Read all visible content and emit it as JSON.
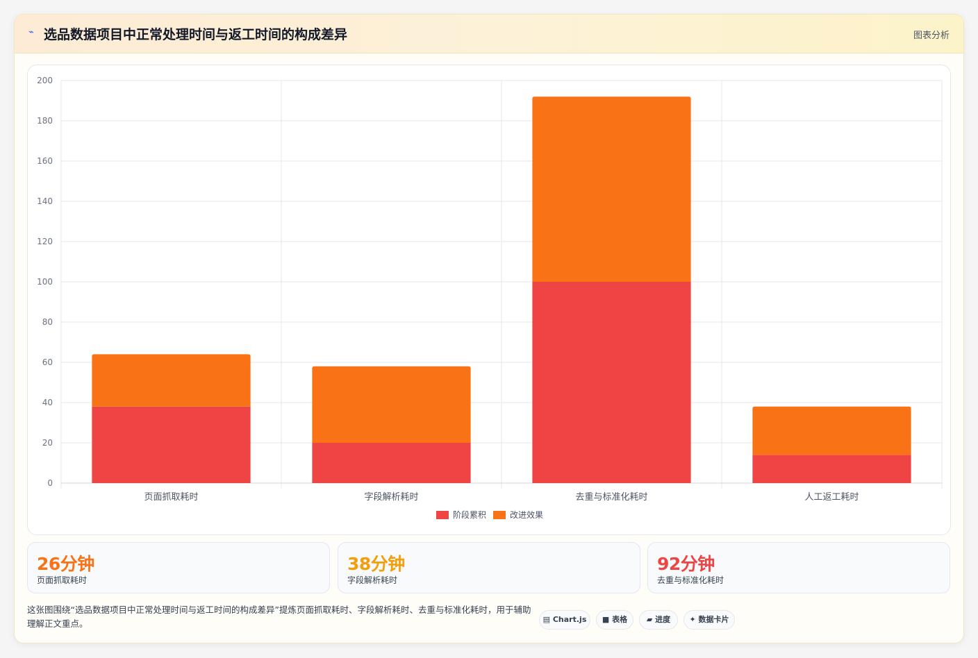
{
  "header": {
    "icon": "chart-icon",
    "title": "选品数据项目中正常处理时间与返工时间的构成差异",
    "tag": "图表分析"
  },
  "chart_data": {
    "type": "bar",
    "stacked": true,
    "categories": [
      "页面抓取耗时",
      "字段解析耗时",
      "去重与标准化耗时",
      "人工返工耗时"
    ],
    "series": [
      {
        "name": "阶段累积",
        "color": "#ef4444",
        "values": [
          38,
          20,
          100,
          14
        ]
      },
      {
        "name": "改进效果",
        "color": "#f97316",
        "values": [
          26,
          38,
          92,
          24
        ]
      }
    ],
    "ylim": [
      0,
      200
    ],
    "yticks": [
      0,
      20,
      40,
      60,
      80,
      100,
      120,
      140,
      160,
      180,
      200
    ],
    "grid": true,
    "legend": "bottom"
  },
  "stats": [
    {
      "value": "26分钟",
      "label": "页面抓取耗时",
      "color": "#f97316"
    },
    {
      "value": "38分钟",
      "label": "字段解析耗时",
      "color": "#f59e0b"
    },
    {
      "value": "92分钟",
      "label": "去重与标准化耗时",
      "color": "#ef4444"
    }
  ],
  "footer": {
    "text": "这张图围绕“选品数据项目中正常处理时间与返工时间的构成差异”提炼页面抓取耗时、字段解析耗时、去重与标准化耗时，用于辅助理解正文重点。",
    "chips": [
      {
        "icon": "chart-icon",
        "label": "Chart.js"
      },
      {
        "icon": "table-icon",
        "label": "表格"
      },
      {
        "icon": "progress-icon",
        "label": "进度"
      },
      {
        "icon": "sparkle-icon",
        "label": "数据卡片"
      }
    ]
  }
}
